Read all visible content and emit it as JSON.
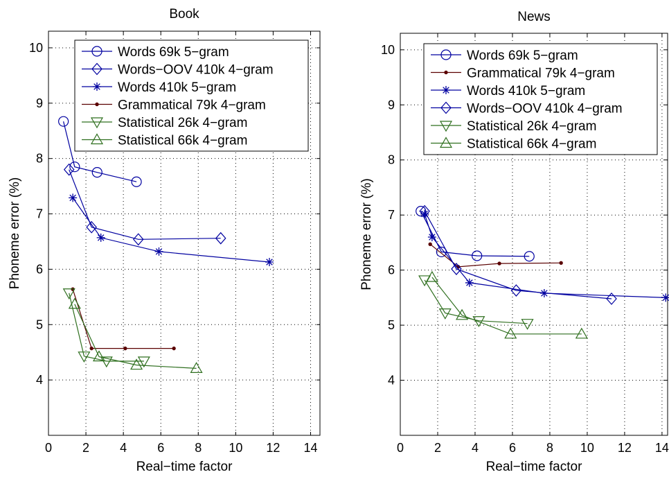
{
  "chart_data": [
    {
      "type": "line",
      "title": "Book",
      "xlabel": "Real−time factor",
      "ylabel": "Phoneme error (%)",
      "xlim": [
        0,
        14.5
      ],
      "ylim": [
        3,
        10.3
      ],
      "xticks": [
        "0",
        "2",
        "4",
        "6",
        "8",
        "10",
        "12",
        "14"
      ],
      "yticks": [
        "4",
        "5",
        "6",
        "7",
        "8",
        "9",
        "10"
      ],
      "grid": "dotted",
      "legend_position": "top-right",
      "series": [
        {
          "name": "Words 69k 5−gram",
          "color": "#0000a0",
          "marker": "circle",
          "x": [
            0.8,
            1.4,
            2.6,
            4.7
          ],
          "y": [
            8.67,
            7.85,
            7.75,
            7.58
          ]
        },
        {
          "name": "Words−OOV 410k 4−gram",
          "color": "#0000a0",
          "marker": "diamond",
          "x": [
            1.1,
            2.3,
            4.8,
            9.2
          ],
          "y": [
            7.8,
            6.76,
            6.54,
            6.56
          ]
        },
        {
          "name": "Words 410k 5−gram",
          "color": "#0000a0",
          "marker": "star",
          "x": [
            1.3,
            2.8,
            5.9,
            11.8
          ],
          "y": [
            7.29,
            6.57,
            6.32,
            6.13
          ]
        },
        {
          "name": "Grammatical 79k 4−gram",
          "color": "#5a0000",
          "marker": "dot",
          "x": [
            1.3,
            2.3,
            4.1,
            6.7
          ],
          "y": [
            5.64,
            4.57,
            4.57,
            4.57
          ]
        },
        {
          "name": "Statistical 26k 4−gram",
          "color": "#2f6f1f",
          "marker": "triangle-down",
          "x": [
            1.1,
            1.9,
            3.1,
            5.1
          ],
          "y": [
            5.57,
            4.43,
            4.34,
            4.34
          ]
        },
        {
          "name": "Statistical 66k 4−gram",
          "color": "#2f6f1f",
          "marker": "triangle-up",
          "x": [
            1.4,
            2.7,
            4.7,
            7.9
          ],
          "y": [
            5.37,
            4.42,
            4.27,
            4.21
          ]
        }
      ]
    },
    {
      "type": "line",
      "title": "News",
      "xlabel": "Real−time factor",
      "ylabel": "Phoneme error (%)",
      "xlim": [
        0,
        14.3
      ],
      "ylim": [
        3,
        10.3
      ],
      "xticks": [
        "0",
        "2",
        "4",
        "6",
        "8",
        "10",
        "12",
        "14"
      ],
      "yticks": [
        "4",
        "5",
        "6",
        "7",
        "8",
        "9",
        "10"
      ],
      "grid": "dotted",
      "legend_position": "top-right",
      "series": [
        {
          "name": "Words 69k 5−gram",
          "color": "#0000a0",
          "marker": "circle",
          "x": [
            1.1,
            2.2,
            4.1,
            6.9
          ],
          "y": [
            7.07,
            6.33,
            6.26,
            6.25
          ]
        },
        {
          "name": "Grammatical 79k 4−gram",
          "color": "#5a0000",
          "marker": "dot",
          "x": [
            1.6,
            3.1,
            5.3,
            8.6
          ],
          "y": [
            6.47,
            6.06,
            6.12,
            6.13
          ]
        },
        {
          "name": "Words 410k 5−gram",
          "color": "#0000a0",
          "marker": "star",
          "x": [
            1.3,
            1.7,
            3.7,
            7.7,
            14.2
          ],
          "y": [
            7.02,
            6.6,
            5.77,
            5.58,
            5.5
          ]
        },
        {
          "name": "Words−OOV 410k 4−gram",
          "color": "#0000a0",
          "marker": "diamond",
          "x": [
            1.3,
            3.0,
            6.2,
            11.3
          ],
          "y": [
            7.07,
            6.02,
            5.63,
            5.48
          ]
        },
        {
          "name": "Statistical 26k 4−gram",
          "color": "#2f6f1f",
          "marker": "triangle-down",
          "x": [
            1.3,
            2.4,
            4.2,
            6.8
          ],
          "y": [
            5.82,
            5.22,
            5.08,
            5.03
          ]
        },
        {
          "name": "Statistical 66k 4−gram",
          "color": "#2f6f1f",
          "marker": "triangle-up",
          "x": [
            1.7,
            3.3,
            5.9,
            9.7
          ],
          "y": [
            5.87,
            5.18,
            4.84,
            4.84
          ]
        }
      ]
    }
  ]
}
